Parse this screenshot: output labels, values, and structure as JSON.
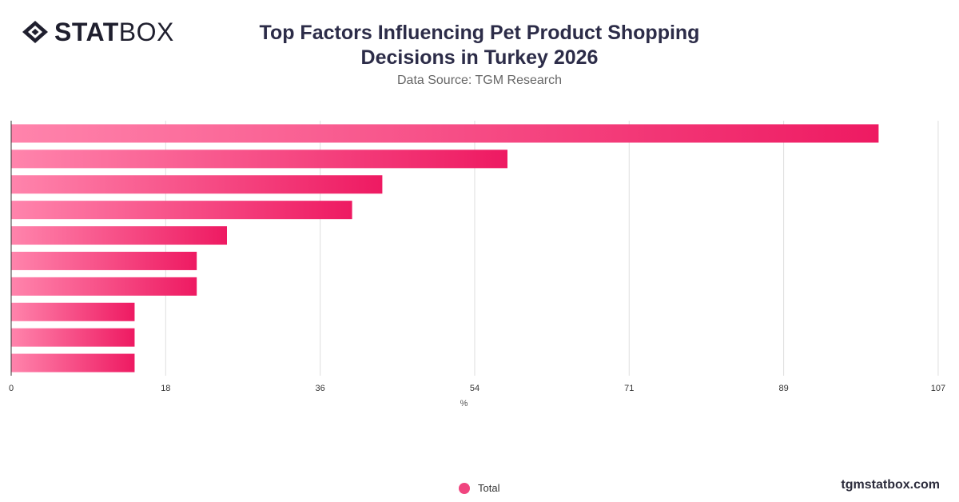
{
  "header": {
    "logo": {
      "word_bold": "STAT",
      "word_light": "BOX"
    },
    "title": "Top Factors Influencing Pet Product Shopping Decisions in Turkey 2026",
    "subtitle": "Data Source: TGM Research"
  },
  "legend": {
    "label": "Total",
    "color": "#f0457f"
  },
  "watermark": "tgmstatbox.com",
  "colors": {
    "bar_start": "#ff84ac",
    "bar_end": "#ee1a62",
    "grid": "#dedede",
    "axis": "#333333"
  },
  "chart_data": {
    "type": "bar",
    "orientation": "horizontal",
    "title": "Top Factors Influencing Pet Product Shopping Decisions in Turkey 2026",
    "subtitle": "Data Source: TGM Research",
    "xlabel": "%",
    "ylabel": "",
    "categories": [
      "",
      "",
      "",
      "",
      "",
      "",
      "",
      "",
      "",
      ""
    ],
    "xlim": [
      0,
      107.5
    ],
    "x_ticks": [
      0,
      18,
      36,
      54,
      71,
      89,
      107
    ],
    "x_tick_positions": [
      0,
      17.9,
      35.8,
      53.7,
      71.6,
      89.5,
      107.4
    ],
    "series": [
      {
        "name": "Total",
        "values": [
          100.5,
          57.5,
          43,
          39.5,
          25,
          21.5,
          21.5,
          14.3,
          14.3,
          14.3
        ]
      }
    ],
    "grid": true,
    "legend_position": "bottom-center"
  }
}
